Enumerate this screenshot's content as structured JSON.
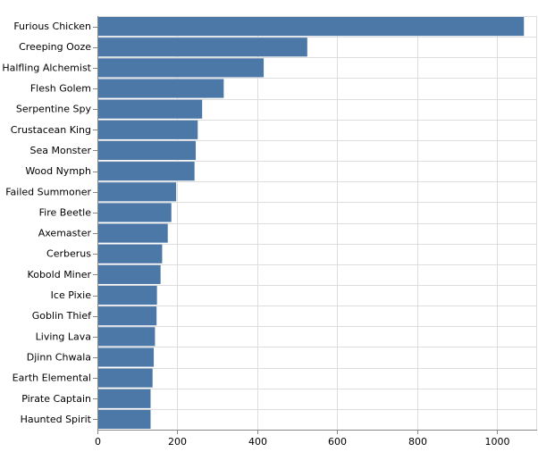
{
  "chart_data": {
    "type": "bar",
    "orientation": "horizontal",
    "title": "",
    "xlabel": "",
    "ylabel": "",
    "categories": [
      "Furious Chicken",
      "Creeping Ooze",
      "Halfling Alchemist",
      "Flesh Golem",
      "Serpentine Spy",
      "Crustacean King",
      "Sea Monster",
      "Wood Nymph",
      "Failed Summoner",
      "Fire Beetle",
      "Axemaster",
      "Cerberus",
      "Kobold Miner",
      "Ice Pixie",
      "Goblin Thief",
      "Living Lava",
      "Djinn Chwala",
      "Earth Elemental",
      "Pirate Captain",
      "Haunted Spirit"
    ],
    "values": [
      1067,
      525,
      416,
      316,
      262,
      251,
      246,
      243,
      197,
      185,
      176,
      162,
      158,
      149,
      148,
      144,
      141,
      138,
      133,
      133
    ],
    "xlim": [
      0,
      1100
    ],
    "xticks": [
      0,
      200,
      400,
      600,
      800,
      1000
    ],
    "grid": true,
    "legend": "none",
    "colors": {
      "bar": "#4c78a8"
    }
  }
}
